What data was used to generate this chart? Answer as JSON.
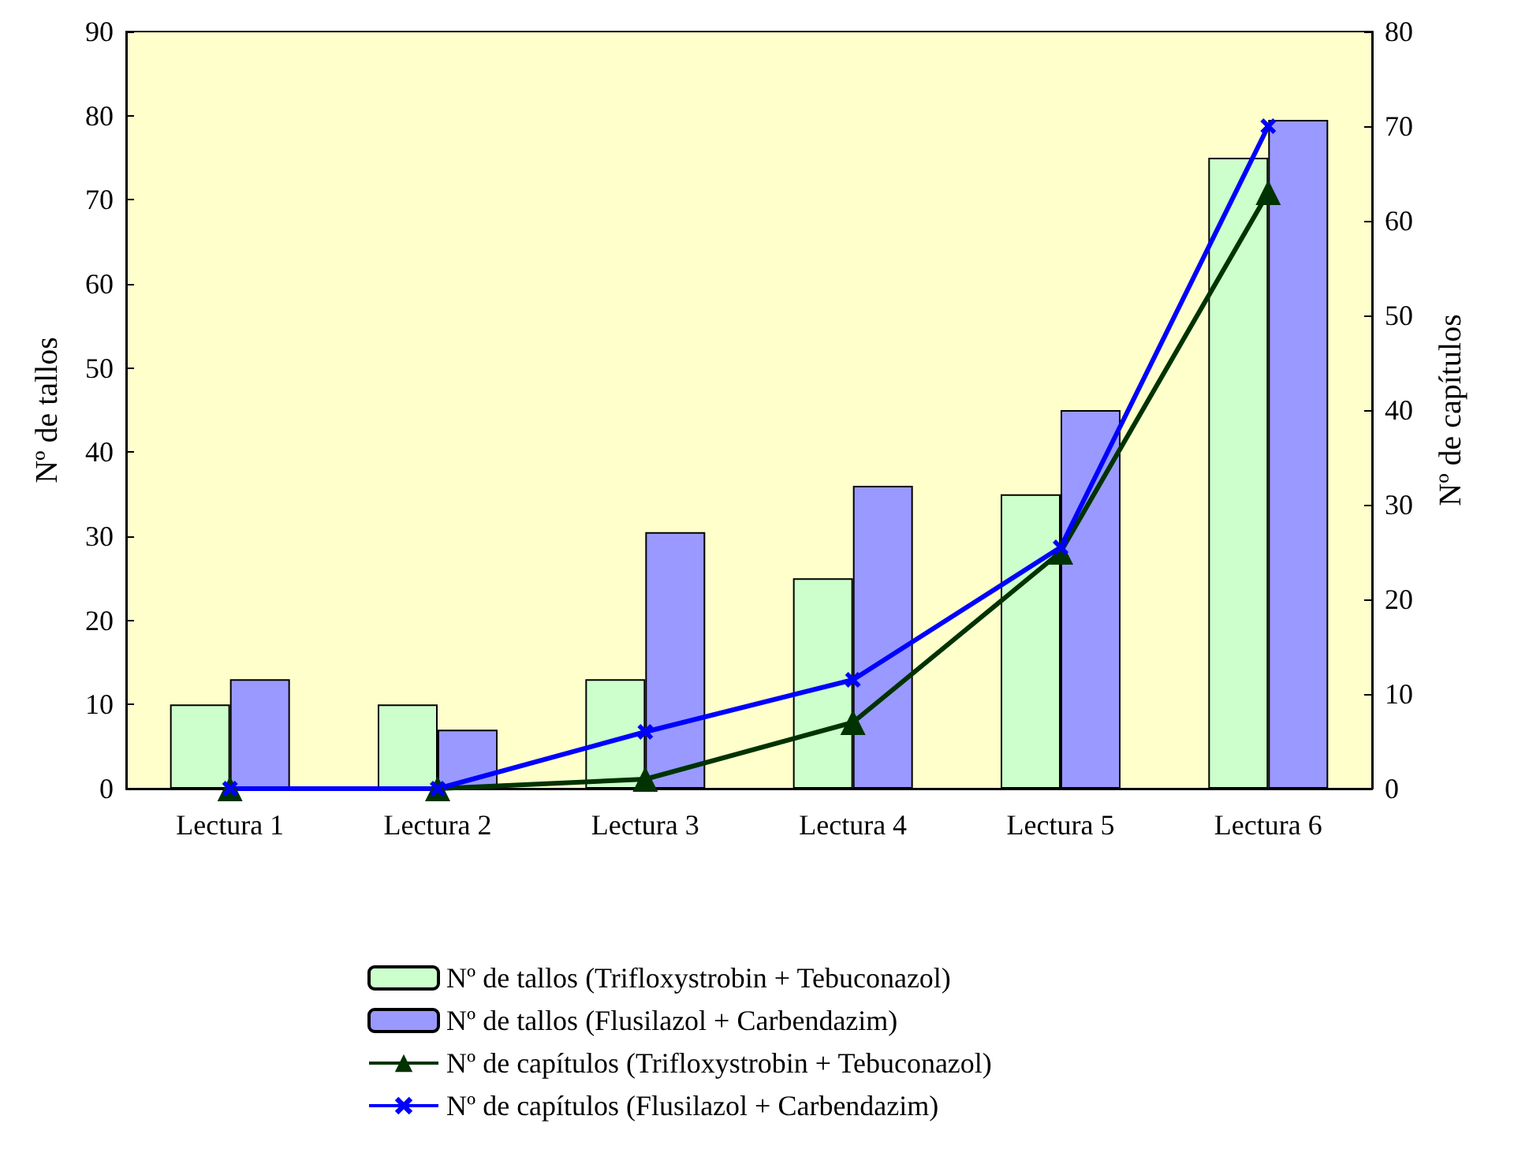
{
  "chart_data": {
    "type": "bar",
    "categories": [
      "Lectura 1",
      "Lectura 2",
      "Lectura 3",
      "Lectura 4",
      "Lectura 5",
      "Lectura 6"
    ],
    "ylabel": "Nº de tallos",
    "y2label": "Nº de capítulos",
    "ylim": [
      0,
      90
    ],
    "yticks": [
      0,
      10,
      20,
      30,
      40,
      50,
      60,
      70,
      80,
      90
    ],
    "y2lim": [
      0,
      80
    ],
    "y2ticks": [
      0,
      10,
      20,
      30,
      40,
      50,
      60,
      70,
      80
    ],
    "grid": false,
    "legend": "bottom",
    "series": [
      {
        "name": "Nº de tallos (Trifloxystrobin + Tebuconazol)",
        "color": "#ccffcc",
        "values": [
          10,
          10,
          13,
          25,
          35,
          75
        ]
      },
      {
        "name": "Nº de tallos (Flusilazol + Carbendazim)",
        "color": "#9999ff",
        "values": [
          13,
          7,
          30.5,
          36,
          45,
          79.5
        ]
      },
      {
        "name": "Nº de capítulos (Trifloxystrobin + Tebuconazol)",
        "type": "line",
        "axis": "y2",
        "marker": "triangle",
        "color": "#003300",
        "values": [
          0,
          0,
          1,
          7,
          25,
          63
        ]
      },
      {
        "name": "Nº de capítulos (Flusilazol + Carbendazim)",
        "type": "line",
        "axis": "y2",
        "marker": "cross",
        "color": "#0000ff",
        "values": [
          0,
          0,
          6,
          11.5,
          25.5,
          70
        ]
      }
    ]
  }
}
